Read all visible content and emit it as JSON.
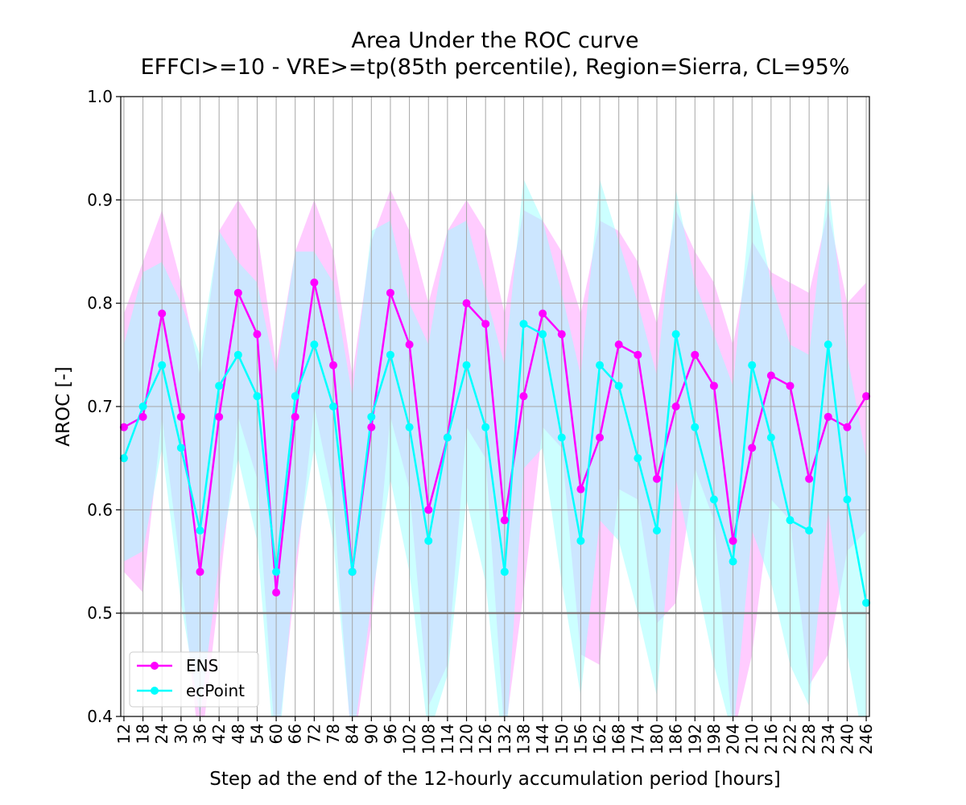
{
  "chart_data": {
    "type": "line",
    "title": "Area Under the ROC curve",
    "subtitle": "EFFCI>=10 - VRE>=tp(85th percentile), Region=Sierra, CL=95%",
    "xlabel": "Step ad the end of the 12-hourly accumulation period [hours]",
    "ylabel": "AROC [-]",
    "ylim": [
      0.4,
      1.0
    ],
    "yticks": [
      0.4,
      0.5,
      0.6,
      0.7,
      0.8,
      0.9,
      1.0
    ],
    "ytick_labels": [
      "0.4",
      "0.5",
      "0.6",
      "0.7",
      "0.8",
      "0.9",
      "1.0"
    ],
    "x": [
      12,
      18,
      24,
      30,
      36,
      42,
      48,
      54,
      60,
      66,
      72,
      78,
      84,
      90,
      96,
      102,
      108,
      114,
      120,
      126,
      132,
      138,
      144,
      150,
      156,
      162,
      168,
      174,
      180,
      186,
      192,
      198,
      204,
      210,
      216,
      222,
      228,
      234,
      240,
      246
    ],
    "xtick_labels": [
      "12",
      "18",
      "24",
      "30",
      "36",
      "42",
      "48",
      "54",
      "60",
      "66",
      "72",
      "78",
      "84",
      "90",
      "96",
      "102",
      "108",
      "114",
      "120",
      "126",
      "132",
      "138",
      "144",
      "150",
      "156",
      "162",
      "168",
      "174",
      "180",
      "186",
      "192",
      "198",
      "204",
      "210",
      "216",
      "222",
      "228",
      "234",
      "240",
      "246"
    ],
    "reference_line": 0.5,
    "grid": true,
    "legend_position": "lower-left",
    "series": [
      {
        "name": "ENS",
        "color": "#ff00ff",
        "band_color": "#ff99ff",
        "values": [
          0.68,
          0.69,
          0.79,
          0.69,
          0.54,
          0.69,
          0.81,
          0.77,
          0.52,
          0.69,
          0.82,
          0.74,
          0.54,
          0.68,
          0.81,
          0.76,
          0.6,
          0.67,
          0.8,
          0.78,
          0.59,
          0.71,
          0.79,
          0.77,
          0.62,
          0.67,
          0.76,
          0.75,
          0.63,
          0.7,
          0.75,
          0.72,
          0.57,
          0.66,
          0.73,
          0.72,
          0.63,
          0.69,
          0.68,
          0.71
        ],
        "upper": [
          0.79,
          0.84,
          0.89,
          0.82,
          0.73,
          0.87,
          0.9,
          0.87,
          0.74,
          0.85,
          0.9,
          0.85,
          0.73,
          0.86,
          0.91,
          0.87,
          0.8,
          0.87,
          0.9,
          0.87,
          0.79,
          0.89,
          0.88,
          0.85,
          0.79,
          0.88,
          0.87,
          0.84,
          0.78,
          0.89,
          0.85,
          0.82,
          0.76,
          0.86,
          0.83,
          0.82,
          0.81,
          0.89,
          0.8,
          0.82
        ],
        "lower": [
          0.54,
          0.52,
          0.69,
          0.54,
          0.36,
          0.52,
          0.69,
          0.63,
          0.36,
          0.53,
          0.7,
          0.61,
          0.36,
          0.49,
          0.69,
          0.62,
          0.41,
          0.45,
          0.68,
          0.65,
          0.38,
          0.52,
          0.68,
          0.66,
          0.46,
          0.45,
          0.62,
          0.61,
          0.49,
          0.51,
          0.64,
          0.59,
          0.38,
          0.46,
          0.61,
          0.59,
          0.43,
          0.46,
          0.56,
          0.58
        ]
      },
      {
        "name": "ecPoint",
        "color": "#00ffff",
        "band_color": "#99ffff",
        "values": [
          0.65,
          0.7,
          0.74,
          0.66,
          0.58,
          0.72,
          0.75,
          0.71,
          0.54,
          0.71,
          0.76,
          0.7,
          0.54,
          0.69,
          0.75,
          0.68,
          0.57,
          0.67,
          0.74,
          0.68,
          0.54,
          0.78,
          0.77,
          0.67,
          0.57,
          0.74,
          0.72,
          0.65,
          0.58,
          0.77,
          0.68,
          0.61,
          0.55,
          0.74,
          0.67,
          0.59,
          0.58,
          0.76,
          0.61,
          0.51
        ],
        "upper": [
          0.76,
          0.83,
          0.84,
          0.8,
          0.75,
          0.87,
          0.84,
          0.82,
          0.73,
          0.85,
          0.85,
          0.82,
          0.71,
          0.87,
          0.88,
          0.8,
          0.76,
          0.87,
          0.88,
          0.81,
          0.74,
          0.92,
          0.88,
          0.81,
          0.73,
          0.92,
          0.86,
          0.8,
          0.73,
          0.91,
          0.82,
          0.77,
          0.72,
          0.91,
          0.82,
          0.76,
          0.75,
          0.92,
          0.75,
          0.65
        ],
        "lower": [
          0.55,
          0.56,
          0.66,
          0.51,
          0.4,
          0.55,
          0.65,
          0.57,
          0.34,
          0.55,
          0.66,
          0.57,
          0.37,
          0.51,
          0.63,
          0.54,
          0.38,
          0.44,
          0.61,
          0.53,
          0.35,
          0.64,
          0.66,
          0.53,
          0.42,
          0.59,
          0.57,
          0.5,
          0.42,
          0.63,
          0.54,
          0.45,
          0.38,
          0.58,
          0.53,
          0.45,
          0.41,
          0.6,
          0.46,
          0.36
        ]
      }
    ]
  }
}
